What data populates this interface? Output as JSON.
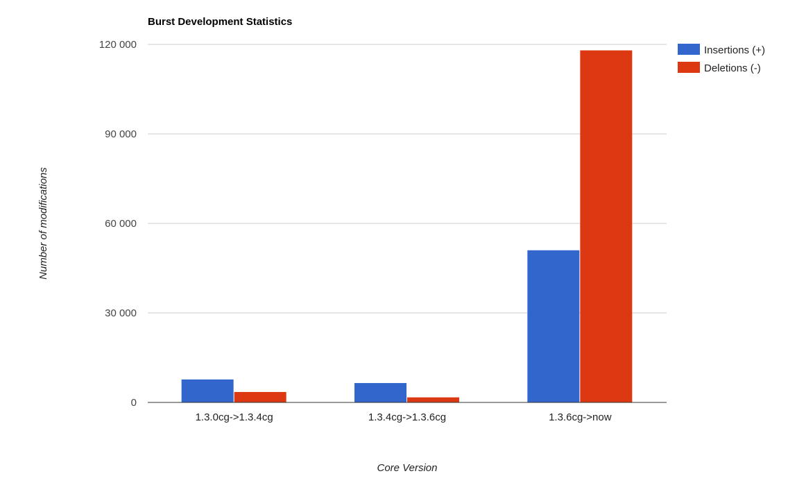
{
  "chart_data": {
    "type": "bar",
    "title": "Burst Development Statistics",
    "xlabel": "Core Version",
    "ylabel": "Number of modifications",
    "categories": [
      "1.3.0cg->1.3.4cg",
      "1.3.4cg->1.3.6cg",
      "1.3.6cg->now"
    ],
    "series": [
      {
        "name": "Insertions (+)",
        "color": "#3366cc",
        "values": [
          7700,
          6500,
          51000
        ]
      },
      {
        "name": "Deletions (-)",
        "color": "#dc3912",
        "values": [
          3500,
          1700,
          118000
        ]
      }
    ],
    "ylim": [
      0,
      120000
    ],
    "yticks": [
      0,
      30000,
      60000,
      90000,
      120000
    ],
    "ytick_labels": [
      "0",
      "30 000",
      "60 000",
      "90 000",
      "120 000"
    ],
    "grid": true,
    "legend": "top-right"
  }
}
